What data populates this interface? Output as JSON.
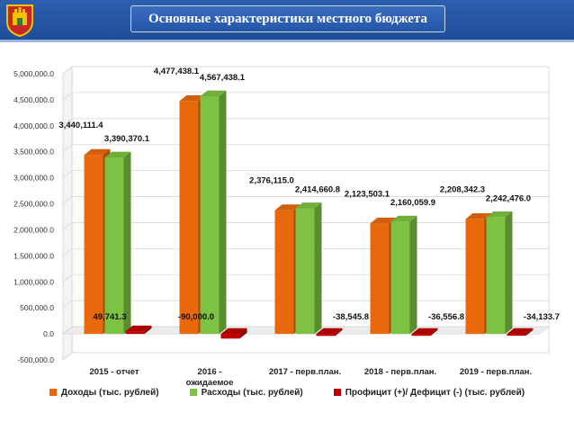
{
  "header": {
    "title": "Основные характеристики местного бюджета"
  },
  "colors": {
    "income": "#e8690c",
    "expense": "#7dc242",
    "balance": "#c00000"
  },
  "chart_data": {
    "type": "bar",
    "style": "3d-clustered-column",
    "title": "",
    "xlabel": "",
    "ylabel": "",
    "ylim": [
      -500000,
      5000000
    ],
    "ytick_step": 500000,
    "grid": true,
    "legend_position": "bottom",
    "categories": [
      "2015 - отчет",
      "2016 - ожидаемое",
      "2017 - перв.план.",
      "2018 - перв.план.",
      "2019 - перв.план."
    ],
    "category_lines": [
      [
        "2015 - отчет"
      ],
      [
        "2016 -",
        "ожидаемое"
      ],
      [
        "2017 - перв.план."
      ],
      [
        "2018 - перв.план."
      ],
      [
        "2019 - перв.план."
      ]
    ],
    "ytick_labels": [
      "-500,000.0",
      "0.0",
      "500,000.0",
      "1,000,000.0",
      "1,500,000.0",
      "2,000,000.0",
      "2,500,000.0",
      "3,000,000.0",
      "3,500,000.0",
      "4,000,000.0",
      "4,500,000.0",
      "5,000,000.0"
    ],
    "series": [
      {
        "name": "Доходы (тыс. рублей)",
        "color": "#e8690c",
        "values": [
          3440111.4,
          4477438.1,
          2376115.0,
          2123503.1,
          2208342.3
        ],
        "labels": [
          "3,440,111.4",
          "4,477,438.1",
          "2,376,115.0",
          "2,123,503.1",
          "2,208,342.3"
        ]
      },
      {
        "name": "Расходы (тыс. рублей)",
        "color": "#7dc242",
        "values": [
          3390370.1,
          4567438.1,
          2414660.8,
          2160059.9,
          2242476.0
        ],
        "labels": [
          "3,390,370.1",
          "4,567,438.1",
          "2,414,660.8",
          "2,160,059.9",
          "2,242,476.0"
        ]
      },
      {
        "name": "Профицит (+)/ Дефицит (-) (тыс. рублей)",
        "color": "#c00000",
        "values": [
          49741.3,
          -90000.0,
          -38545.8,
          -36556.8,
          -34133.7
        ],
        "labels": [
          "49,741.3",
          "-90,000.0",
          "-38,545.8",
          "-36,556.8",
          "-34,133.7"
        ]
      }
    ]
  }
}
